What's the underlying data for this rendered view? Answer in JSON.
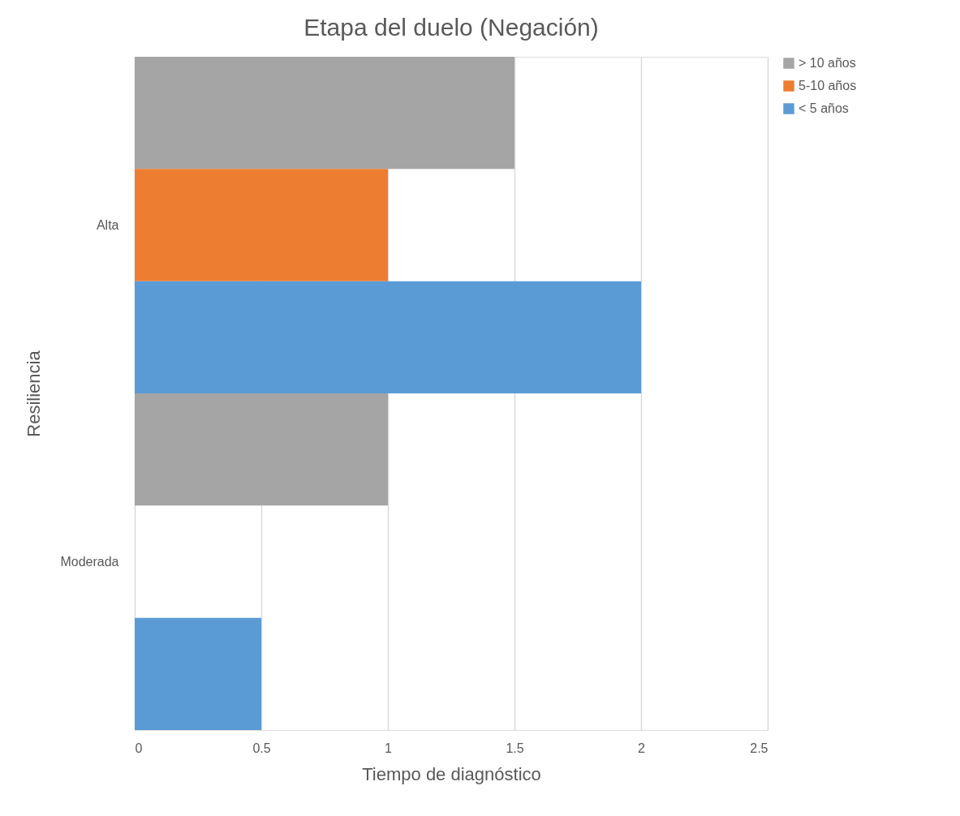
{
  "chart_data": {
    "type": "bar",
    "orientation": "horizontal",
    "title": "Etapa del duelo (Negación)",
    "xlabel": "Tiempo de diagnóstico",
    "ylabel": "Resiliencia",
    "categories": [
      "Alta",
      "Moderada"
    ],
    "series": [
      {
        "name": "> 10 años",
        "color": "#a5a5a5",
        "values": [
          1.5,
          1
        ]
      },
      {
        "name": "5-10 años",
        "color": "#ed7d31",
        "values": [
          1,
          null
        ]
      },
      {
        "name": "< 5 años",
        "color": "#5b9bd5",
        "values": [
          2,
          0.5
        ]
      }
    ],
    "xlim": [
      0,
      2.5
    ],
    "xticks": [
      0,
      0.5,
      1,
      1.5,
      2,
      2.5
    ],
    "grid": "x",
    "legend": "right"
  }
}
